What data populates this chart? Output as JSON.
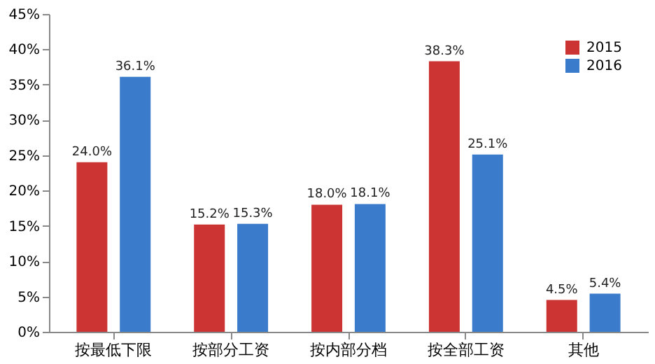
{
  "chart_data": {
    "type": "bar",
    "categories": [
      "按最低下限",
      "按部分工资",
      "按内部分档",
      "按全部工资",
      "其他"
    ],
    "series": [
      {
        "name": "2015",
        "color": "#cc3333",
        "values": [
          24.0,
          15.2,
          18.0,
          38.3,
          4.5
        ],
        "value_labels": [
          "24.0%",
          "15.2%",
          "18.0%",
          "38.3%",
          "4.5%"
        ]
      },
      {
        "name": "2016",
        "color": "#3a7bcc",
        "values": [
          36.1,
          15.3,
          18.1,
          25.1,
          5.4
        ],
        "value_labels": [
          "36.1%",
          "15.3%",
          "18.1%",
          "25.1%",
          "5.4%"
        ]
      }
    ],
    "ylim": [
      0,
      45
    ],
    "yticks": [
      {
        "value": 0,
        "label": "0%"
      },
      {
        "value": 5,
        "label": "5%"
      },
      {
        "value": 10,
        "label": "10%"
      },
      {
        "value": 15,
        "label": "15%"
      },
      {
        "value": 20,
        "label": "20%"
      },
      {
        "value": 25,
        "label": "25%"
      },
      {
        "value": 30,
        "label": "30%"
      },
      {
        "value": 35,
        "label": "35%"
      },
      {
        "value": 40,
        "label": "40%"
      },
      {
        "value": 45,
        "label": "45%"
      }
    ],
    "grid": false,
    "legend": "top right"
  }
}
